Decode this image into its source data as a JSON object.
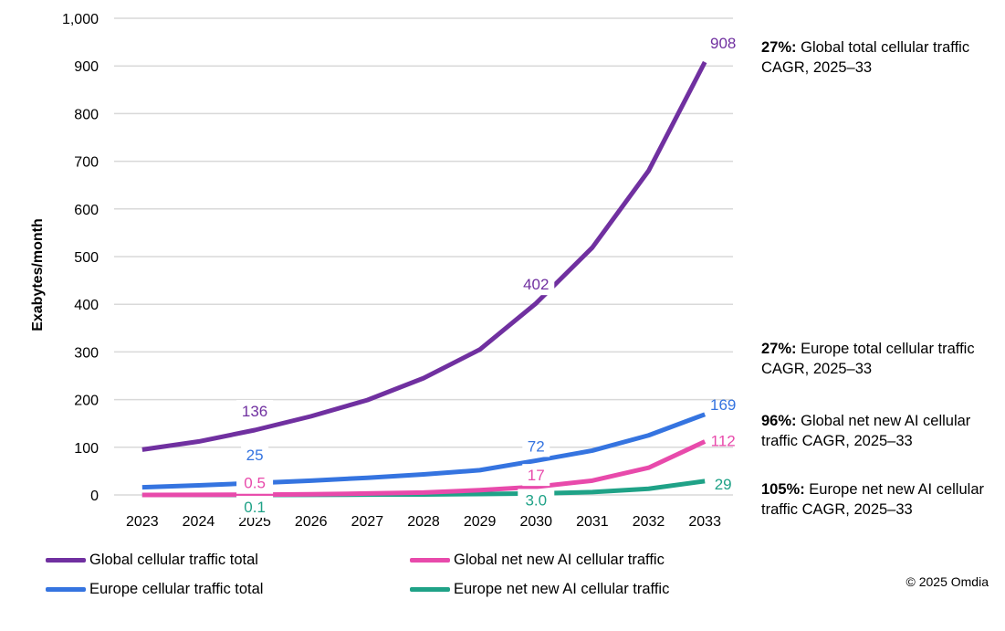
{
  "chart_data": {
    "type": "line",
    "title": "",
    "xlabel": "",
    "ylabel": "Exabytes/month",
    "ylim": [
      0,
      1000
    ],
    "yticks": [
      "0",
      "100",
      "200",
      "300",
      "400",
      "500",
      "600",
      "700",
      "800",
      "900",
      "1,000"
    ],
    "grid": true,
    "legend_placement": "bottom",
    "x": [
      "2023",
      "2024",
      "2025",
      "2026",
      "2027",
      "2028",
      "2029",
      "2030",
      "2031",
      "2032",
      "2033"
    ],
    "series": [
      {
        "name": "Global cellular traffic total",
        "color": "#7030A0",
        "values": [
          95,
          112,
          136,
          165,
          199,
          245,
          305,
          402,
          519,
          680,
          908
        ],
        "labels": {
          "2025": "136",
          "2030": "402",
          "2033": "908"
        }
      },
      {
        "name": "Europe cellular traffic total",
        "color": "#3574E0",
        "values": [
          16,
          20,
          25,
          30,
          36,
          43,
          52,
          72,
          93,
          125,
          169
        ],
        "labels": {
          "2025": "25",
          "2030": "72",
          "2033": "169"
        }
      },
      {
        "name": "Global net new AI cellular traffic",
        "color": "#E84AAB",
        "values": [
          0.1,
          0.2,
          0.5,
          1.5,
          3,
          5,
          10,
          17,
          30,
          57,
          112
        ],
        "labels": {
          "2025": "0.5",
          "2030": "17",
          "2033": "112"
        }
      },
      {
        "name": "Europe net new AI cellular traffic",
        "color": "#1FA287",
        "values": [
          0.02,
          0.05,
          0.1,
          0.3,
          0.6,
          1,
          2,
          3.0,
          6,
          13,
          29
        ],
        "labels": {
          "2025": "0.1",
          "2030": "3.0",
          "2033": "29"
        }
      }
    ]
  },
  "annotations": [
    {
      "pct": "27%:",
      "text": " Global total cellular traffic CAGR, 2025–33",
      "color": "#7030A0"
    },
    {
      "pct": "27%:",
      "text": " Europe total cellular traffic CAGR, 2025–33",
      "color": "#3574E0"
    },
    {
      "pct": "96%:",
      "text": " Global net new AI cellular traffic CAGR, 2025–33",
      "color": "#E84AAB"
    },
    {
      "pct": "105%:",
      "text": " Europe net new AI cellular traffic CAGR, 2025–33",
      "color": "#1FA287"
    }
  ],
  "copyright": "© 2025 Omdia"
}
